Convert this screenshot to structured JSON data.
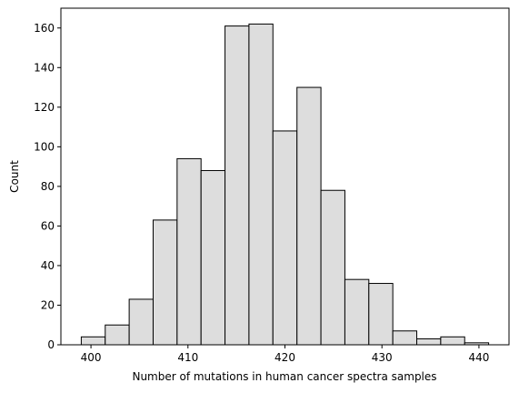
{
  "chart_data": {
    "type": "histogram",
    "xlabel": "Number of mutations in human cancer spectra samples",
    "ylabel": "Count",
    "bins": [
      399,
      401.47,
      403.94,
      406.41,
      408.88,
      411.35,
      413.82,
      416.29,
      418.76,
      421.24,
      423.71,
      426.18,
      428.65,
      431.12,
      433.59,
      436.06,
      438.53,
      441
    ],
    "counts": [
      4,
      10,
      23,
      63,
      94,
      88,
      161,
      162,
      108,
      130,
      78,
      33,
      31,
      7,
      3,
      4,
      1
    ],
    "color": "#dddddd",
    "edgecolor": "#000000",
    "xlim": [
      396.9,
      443.1
    ],
    "xticks": [
      400,
      410,
      420,
      430,
      440
    ],
    "ylim": [
      0,
      170
    ],
    "yticks": [
      0,
      20,
      40,
      60,
      80,
      100,
      120,
      140,
      160
    ]
  }
}
